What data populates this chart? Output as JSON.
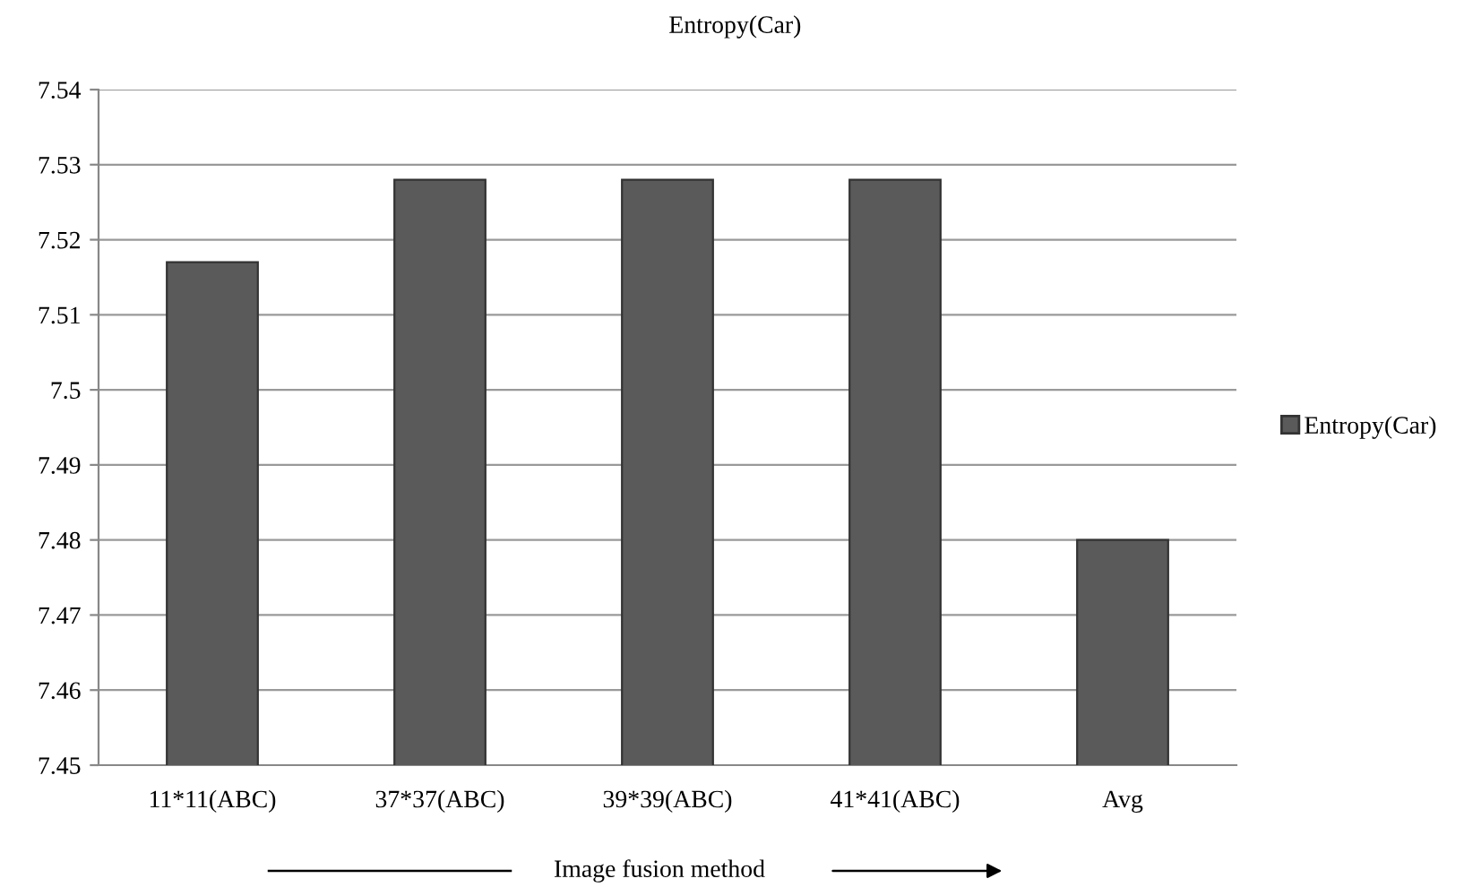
{
  "chart_data": {
    "type": "bar",
    "title": "Entropy(Car)",
    "xlabel": "Image fusion method",
    "categories": [
      "11*11(ABC)",
      "37*37(ABC)",
      "39*39(ABC)",
      "41*41(ABC)",
      "Avg"
    ],
    "series": [
      {
        "name": "Entropy(Car)",
        "color": "#5a5a5a",
        "values": [
          7.517,
          7.528,
          7.528,
          7.528,
          7.48
        ]
      }
    ],
    "ylim": [
      7.45,
      7.54
    ],
    "yticks": [
      7.45,
      7.46,
      7.47,
      7.48,
      7.49,
      {
        "value": 7.5,
        "label": "7.5"
      },
      7.51,
      7.52,
      7.53,
      7.54
    ],
    "grid": "y",
    "legend": "right"
  }
}
